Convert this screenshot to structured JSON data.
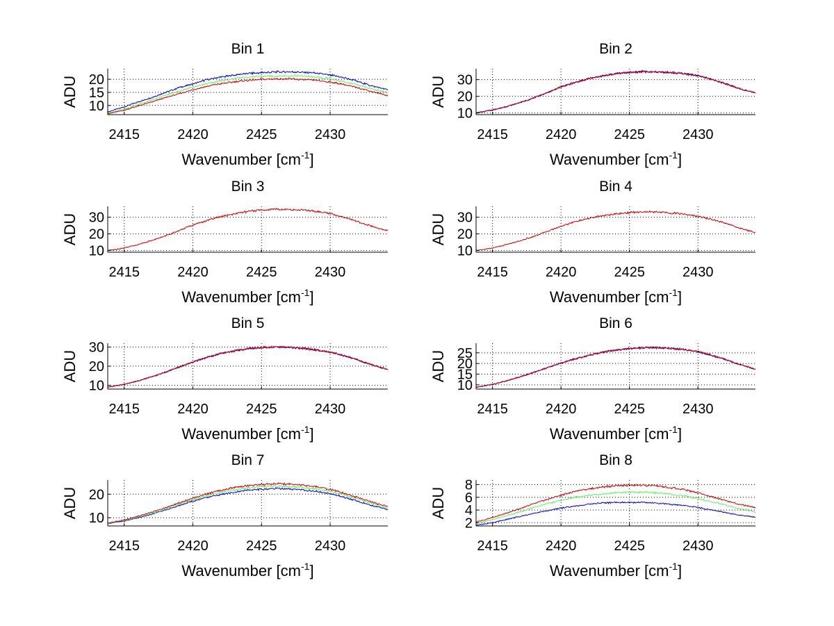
{
  "figure": {
    "colors": {
      "blue": "#0000cc",
      "green": "#66ee66",
      "red": "#cc0000",
      "axis": "#000000",
      "grid": "#000000"
    }
  },
  "chart_data": [
    {
      "type": "line",
      "title": "Bin 1",
      "xlabel": "Wavenumber [cm",
      "xlabel_sup": "-1",
      "xlabel_end": "]",
      "ylabel": "ADU",
      "xlim": [
        2413.8,
        2434.2
      ],
      "ylim": [
        6.5,
        24
      ],
      "xticks": [
        2415,
        2420,
        2425,
        2430
      ],
      "yticks": [
        10,
        15,
        20
      ],
      "grid": true,
      "x": [
        2413.8,
        2415,
        2416,
        2417,
        2418,
        2419,
        2420,
        2421,
        2422,
        2423,
        2424,
        2425,
        2426,
        2427,
        2428,
        2429,
        2430,
        2431,
        2432,
        2433,
        2434.2
      ],
      "series": [
        {
          "color": "blue",
          "values": [
            7.5,
            9.5,
            11.3,
            13,
            15,
            16.8,
            18.2,
            19.8,
            20.8,
            21.6,
            22.2,
            22.5,
            22.8,
            22.9,
            22.7,
            22.3,
            21.6,
            20.6,
            19.2,
            17.5,
            16
          ]
        },
        {
          "color": "green",
          "values": [
            7,
            8.6,
            10.3,
            12,
            13.9,
            15.4,
            17,
            18.4,
            19.4,
            20.2,
            20.8,
            21.1,
            21.2,
            21.3,
            21.2,
            20.8,
            20.1,
            19.1,
            17.8,
            16.4,
            14.8
          ]
        },
        {
          "color": "red",
          "values": [
            6.8,
            8.2,
            9.8,
            11.3,
            13,
            14.5,
            16,
            17.3,
            18.3,
            19,
            19.6,
            19.9,
            20.1,
            20.1,
            19.9,
            19.6,
            18.9,
            18,
            16.8,
            15.4,
            13.8
          ]
        }
      ]
    },
    {
      "type": "line",
      "title": "Bin 2",
      "xlabel": "Wavenumber [cm",
      "xlabel_sup": "-1",
      "xlabel_end": "]",
      "ylabel": "ADU",
      "xlim": [
        2413.8,
        2434.2
      ],
      "ylim": [
        9,
        36.5
      ],
      "xticks": [
        2415,
        2420,
        2425,
        2430
      ],
      "yticks": [
        10,
        20,
        30
      ],
      "grid": true,
      "x": [
        2413.8,
        2415,
        2416,
        2417,
        2418,
        2419,
        2420,
        2421,
        2422,
        2423,
        2424,
        2425,
        2426,
        2427,
        2428,
        2429,
        2430,
        2431,
        2432,
        2433,
        2434.2
      ],
      "series": [
        {
          "color": "blue",
          "values": [
            10,
            11.8,
            13.8,
            16.2,
            19,
            22.2,
            25.6,
            28.2,
            30.5,
            32.2,
            33.5,
            34.3,
            34.8,
            34.6,
            34.2,
            33.6,
            32.3,
            30.2,
            27.6,
            24.6,
            22
          ]
        },
        {
          "color": "red",
          "values": [
            10,
            11.8,
            13.8,
            16.2,
            19,
            22.2,
            25.6,
            28.2,
            30.5,
            32.2,
            33.5,
            34.3,
            34.8,
            34.6,
            34.2,
            33.6,
            32.3,
            30.2,
            27.6,
            24.6,
            22
          ]
        }
      ]
    },
    {
      "type": "line",
      "title": "Bin 3",
      "xlabel": "Wavenumber [cm",
      "xlabel_sup": "-1",
      "xlabel_end": "]",
      "ylabel": "ADU",
      "xlim": [
        2413.8,
        2434.2
      ],
      "ylim": [
        9,
        36.5
      ],
      "xticks": [
        2415,
        2420,
        2425,
        2430
      ],
      "yticks": [
        10,
        20,
        30
      ],
      "grid": true,
      "x": [
        2413.8,
        2415,
        2416,
        2417,
        2418,
        2419,
        2420,
        2421,
        2422,
        2423,
        2424,
        2425,
        2426,
        2427,
        2428,
        2429,
        2430,
        2431,
        2432,
        2433,
        2434.2
      ],
      "series": [
        {
          "color": "red",
          "values": [
            10,
            11.5,
            13.6,
            16,
            18.8,
            22,
            25.4,
            28,
            30.2,
            32,
            33.4,
            34.3,
            34.8,
            34.6,
            34.2,
            33.5,
            32.2,
            30,
            27.4,
            24.6,
            21.8
          ]
        }
      ]
    },
    {
      "type": "line",
      "title": "Bin 4",
      "xlabel": "Wavenumber [cm",
      "xlabel_sup": "-1",
      "xlabel_end": "]",
      "ylabel": "ADU",
      "xlim": [
        2413.8,
        2434.2
      ],
      "ylim": [
        9,
        36.5
      ],
      "xticks": [
        2415,
        2420,
        2425,
        2430
      ],
      "yticks": [
        10,
        20,
        30
      ],
      "grid": true,
      "x": [
        2413.8,
        2415,
        2416,
        2417,
        2418,
        2419,
        2420,
        2421,
        2422,
        2423,
        2424,
        2425,
        2426,
        2427,
        2428,
        2429,
        2430,
        2431,
        2432,
        2433,
        2434.2
      ],
      "series": [
        {
          "color": "red",
          "values": [
            10,
            11.5,
            13.5,
            15.8,
            18.5,
            21.5,
            24.6,
            27.2,
            29.2,
            30.8,
            32,
            32.8,
            33.2,
            33.1,
            32.6,
            31.8,
            30.6,
            28.7,
            26.3,
            23.6,
            20.8
          ]
        }
      ]
    },
    {
      "type": "line",
      "title": "Bin 5",
      "xlabel": "Wavenumber [cm",
      "xlabel_sup": "-1",
      "xlabel_end": "]",
      "ylabel": "ADU",
      "xlim": [
        2413.8,
        2434.2
      ],
      "ylim": [
        8,
        32
      ],
      "xticks": [
        2415,
        2420,
        2425,
        2430
      ],
      "yticks": [
        10,
        20,
        30
      ],
      "grid": true,
      "x": [
        2413.8,
        2415,
        2416,
        2417,
        2418,
        2419,
        2420,
        2421,
        2422,
        2423,
        2424,
        2425,
        2426,
        2427,
        2428,
        2429,
        2430,
        2431,
        2432,
        2433,
        2434.2
      ],
      "series": [
        {
          "color": "blue",
          "values": [
            9,
            10.5,
            12.3,
            14.4,
            16.8,
            19.5,
            22.2,
            24.5,
            26.5,
            28,
            29.2,
            29.8,
            30.1,
            29.9,
            29.3,
            28.5,
            27.3,
            25.5,
            23.3,
            20.8,
            18.3
          ]
        },
        {
          "color": "red",
          "values": [
            9,
            10.5,
            12.3,
            14.4,
            16.8,
            19.5,
            22.2,
            24.5,
            26.5,
            28,
            29.2,
            29.8,
            30.1,
            29.9,
            29.3,
            28.5,
            27.3,
            25.5,
            23.3,
            20.8,
            18.3
          ]
        }
      ]
    },
    {
      "type": "line",
      "title": "Bin 6",
      "xlabel": "Wavenumber [cm",
      "xlabel_sup": "-1",
      "xlabel_end": "]",
      "ylabel": "ADU",
      "xlim": [
        2413.8,
        2434.2
      ],
      "ylim": [
        8,
        29.5
      ],
      "xticks": [
        2415,
        2420,
        2425,
        2430
      ],
      "yticks": [
        10,
        15,
        20,
        25
      ],
      "grid": true,
      "x": [
        2413.8,
        2415,
        2416,
        2417,
        2418,
        2419,
        2420,
        2421,
        2422,
        2423,
        2424,
        2425,
        2426,
        2427,
        2428,
        2429,
        2430,
        2431,
        2432,
        2433,
        2434.2
      ],
      "series": [
        {
          "color": "blue",
          "values": [
            8.8,
            10.2,
            11.8,
            13.7,
            15.8,
            18,
            20.2,
            22.1,
            23.8,
            25.2,
            26.3,
            27,
            27.4,
            27.4,
            27.1,
            26.5,
            25.5,
            23.9,
            21.9,
            19.6,
            17.3
          ]
        },
        {
          "color": "red",
          "values": [
            8.8,
            10.2,
            11.8,
            13.7,
            15.8,
            18,
            20.2,
            22.1,
            23.8,
            25.2,
            26.3,
            27,
            27.4,
            27.4,
            27.1,
            26.5,
            25.5,
            23.9,
            21.9,
            19.6,
            17.3
          ]
        }
      ]
    },
    {
      "type": "line",
      "title": "Bin 7",
      "xlabel": "Wavenumber [cm",
      "xlabel_sup": "-1",
      "xlabel_end": "]",
      "ylabel": "ADU",
      "xlim": [
        2413.8,
        2434.2
      ],
      "ylim": [
        6.5,
        26
      ],
      "xticks": [
        2415,
        2420,
        2425,
        2430
      ],
      "yticks": [
        10,
        20
      ],
      "grid": true,
      "x": [
        2413.8,
        2415,
        2416,
        2417,
        2418,
        2419,
        2420,
        2421,
        2422,
        2423,
        2424,
        2425,
        2426,
        2427,
        2428,
        2429,
        2430,
        2431,
        2432,
        2433,
        2434.2
      ],
      "series": [
        {
          "color": "blue",
          "values": [
            7.5,
            8.6,
            10,
            11.5,
            13.3,
            15.2,
            17,
            18.6,
            19.9,
            20.9,
            21.7,
            22.1,
            22.4,
            22.3,
            21.9,
            21.2,
            20.2,
            18.8,
            17.1,
            15.3,
            13.5
          ]
        },
        {
          "color": "green",
          "values": [
            7.6,
            8.8,
            10.3,
            11.9,
            13.8,
            15.8,
            17.7,
            19.4,
            20.8,
            21.9,
            22.7,
            23.2,
            23.4,
            23.3,
            22.9,
            22.2,
            21.1,
            19.7,
            18,
            16.1,
            14.2
          ]
        },
        {
          "color": "red",
          "values": [
            7.7,
            9,
            10.6,
            12.3,
            14.2,
            16.3,
            18.3,
            20.1,
            21.6,
            22.8,
            23.6,
            24.1,
            24.4,
            24.3,
            23.9,
            23.1,
            22,
            20.5,
            18.7,
            16.7,
            14.7
          ]
        }
      ]
    },
    {
      "type": "line",
      "title": "Bin 8",
      "xlabel": "Wavenumber [cm",
      "xlabel_sup": "-1",
      "xlabel_end": "]",
      "ylabel": "ADU",
      "xlim": [
        2413.8,
        2434.2
      ],
      "ylim": [
        1.5,
        8.7
      ],
      "xticks": [
        2415,
        2420,
        2425,
        2430
      ],
      "yticks": [
        2,
        4,
        6,
        8
      ],
      "grid": true,
      "x": [
        2413.8,
        2415,
        2416,
        2417,
        2418,
        2419,
        2420,
        2421,
        2422,
        2423,
        2424,
        2425,
        2426,
        2427,
        2428,
        2429,
        2430,
        2431,
        2432,
        2433,
        2434.2
      ],
      "series": [
        {
          "color": "blue",
          "values": [
            1.6,
            2,
            2.5,
            3,
            3.5,
            3.9,
            4.3,
            4.6,
            4.9,
            5.1,
            5.2,
            5.2,
            5.2,
            5.1,
            4.9,
            4.7,
            4.4,
            4,
            3.6,
            3.2,
            2.9
          ]
        },
        {
          "color": "green",
          "values": [
            1.9,
            2.5,
            3.1,
            3.7,
            4.4,
            5,
            5.5,
            6,
            6.3,
            6.5,
            6.7,
            6.8,
            6.8,
            6.7,
            6.5,
            6.2,
            5.8,
            5.3,
            4.8,
            4.2,
            3.7
          ]
        },
        {
          "color": "red",
          "values": [
            2.1,
            2.8,
            3.5,
            4.2,
            5,
            5.7,
            6.3,
            6.9,
            7.3,
            7.6,
            7.8,
            7.9,
            7.9,
            7.8,
            7.5,
            7.2,
            6.7,
            6.1,
            5.5,
            4.9,
            4.4
          ]
        }
      ]
    }
  ]
}
